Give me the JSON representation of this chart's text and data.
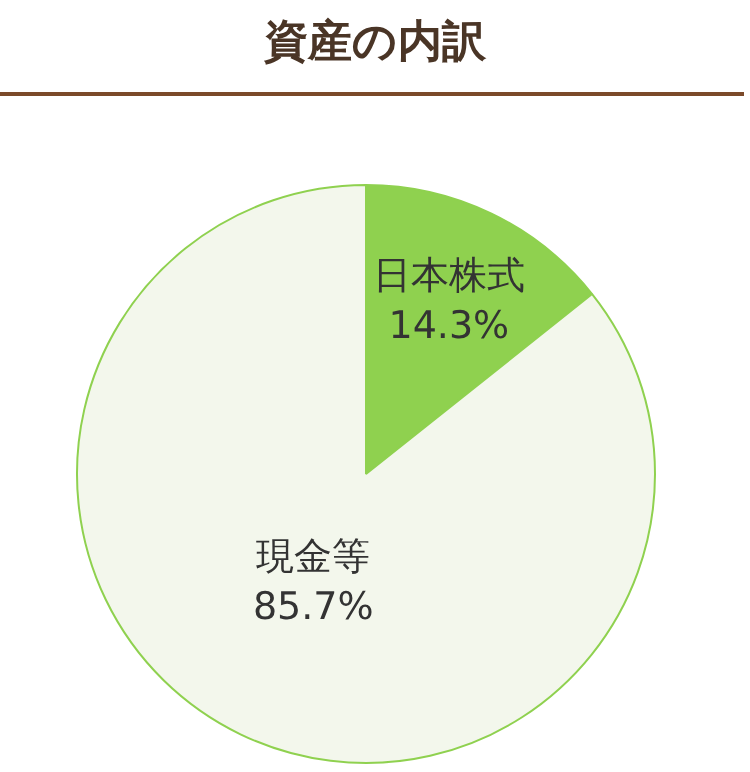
{
  "chart_data": {
    "type": "pie",
    "title": "資産の内訳",
    "categories": [
      "日本株式",
      "現金等"
    ],
    "values": [
      14.3,
      85.7
    ],
    "colors": [
      "#8fd14f",
      "#f3f7ec"
    ],
    "value_labels": [
      "14.3%",
      "85.7%"
    ],
    "legend": false
  }
}
